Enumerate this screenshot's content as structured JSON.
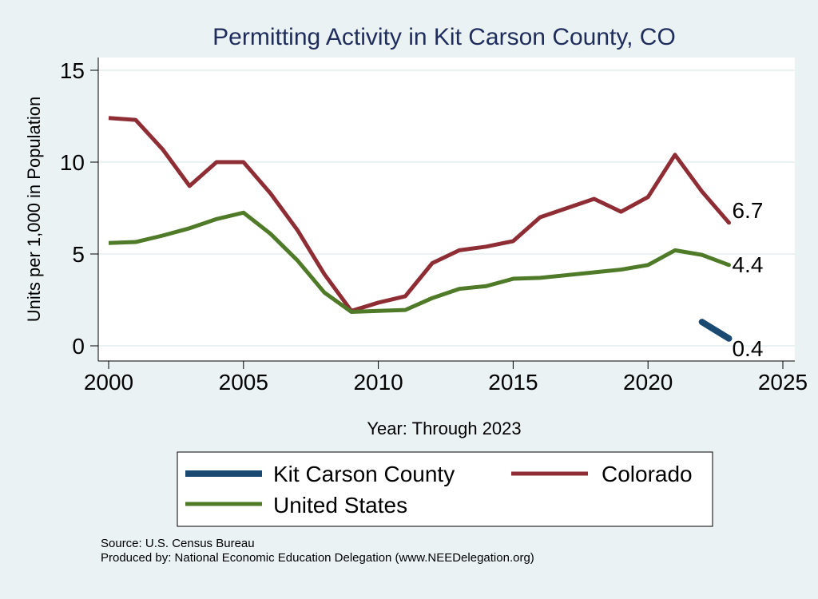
{
  "chart_data": {
    "type": "line",
    "title": "Permitting Activity in Kit Carson County, CO",
    "xlabel": "Year: Through 2023",
    "ylabel": "Units per 1,000 in Population",
    "xlim": [
      2000,
      2025
    ],
    "ylim": [
      0,
      15
    ],
    "xticks": [
      "2000",
      "2005",
      "2010",
      "2015",
      "2020",
      "2025"
    ],
    "yticks": [
      "0",
      "5",
      "10",
      "15"
    ],
    "grid": true,
    "legend_position": "bottom",
    "x": [
      2000,
      2001,
      2002,
      2003,
      2004,
      2005,
      2006,
      2007,
      2008,
      2009,
      2010,
      2011,
      2012,
      2013,
      2014,
      2015,
      2016,
      2017,
      2018,
      2019,
      2020,
      2021,
      2022,
      2023
    ],
    "series": [
      {
        "name": "Kit Carson County",
        "color": "#1a4a72",
        "x": [
          2022,
          2023
        ],
        "values": [
          1.3,
          0.4
        ],
        "end_label": "0.4"
      },
      {
        "name": "Colorado",
        "color": "#8f2d35",
        "values": [
          12.4,
          12.3,
          10.7,
          8.7,
          10.0,
          10.0,
          8.3,
          6.3,
          3.9,
          1.9,
          2.35,
          2.7,
          4.5,
          5.2,
          5.4,
          5.7,
          7.0,
          7.5,
          8.0,
          7.3,
          8.1,
          10.4,
          8.4,
          6.7
        ],
        "end_label": "6.7"
      },
      {
        "name": "United States",
        "color": "#4f7a28",
        "values": [
          5.6,
          5.65,
          6.0,
          6.4,
          6.9,
          7.25,
          6.1,
          4.65,
          2.9,
          1.85,
          1.9,
          1.95,
          2.6,
          3.1,
          3.25,
          3.65,
          3.7,
          3.85,
          4.0,
          4.15,
          4.4,
          5.2,
          4.95,
          4.4
        ],
        "end_label": "4.4"
      }
    ]
  },
  "footer": {
    "source": "Source: U.S. Census Bureau",
    "produced_by": "Produced by: National Economic Education Delegation (www.NEEDelegation.org)"
  }
}
